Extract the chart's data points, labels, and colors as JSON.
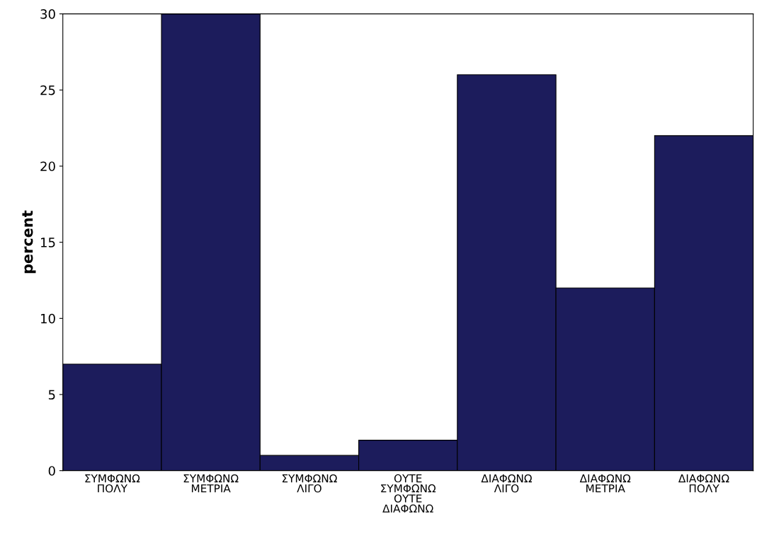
{
  "chart_data": {
    "type": "bar",
    "ylabel": "percent",
    "categories": [
      "ΣΥΜΦΩΝΩ\nΠΟΛΥ",
      "ΣΥΜΦΩΝΩ\nΜΕΤΡΙΑ",
      "ΣΥΜΦΩΝΩ\nΛΙΓΟ",
      "ΟΥΤΕ\nΣΥΜΦΩΝΩ\nΟΥΤΕ\nΔΙΑΦΩΝΩ",
      "ΔΙΑΦΩΝΩ\nΛΙΓΟ",
      "ΔΙΑΦΩΝΩ\nΜΕΤΡΙΑ",
      "ΔΙΑΦΩΝΩ\nΠΟΛΥ"
    ],
    "values": [
      7,
      30,
      1,
      2,
      26,
      12,
      22
    ],
    "color": "#1c1c5c",
    "ylim": [
      0,
      30
    ],
    "yticks": [
      0,
      5,
      10,
      15,
      20,
      25,
      30
    ],
    "grid": false,
    "legend": false
  }
}
